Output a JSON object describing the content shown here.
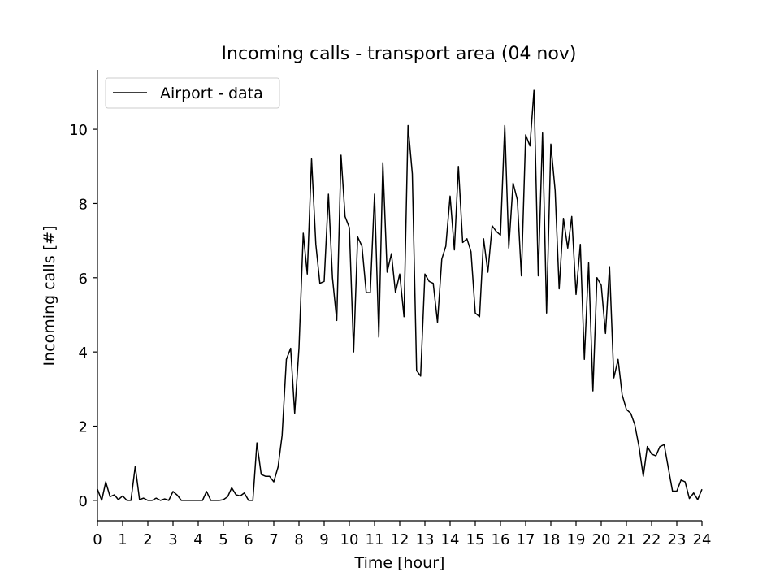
{
  "chart_data": {
    "type": "line",
    "title": "Incoming calls - transport area (04 nov)",
    "xlabel": "Time [hour]",
    "ylabel": "Incoming calls [#]",
    "xlim": [
      0,
      24
    ],
    "ylim": [
      -0.55,
      11.6
    ],
    "xticks": [
      0,
      1,
      2,
      3,
      4,
      5,
      6,
      7,
      8,
      9,
      10,
      11,
      12,
      13,
      14,
      15,
      16,
      17,
      18,
      19,
      20,
      21,
      22,
      23,
      24
    ],
    "yticks": [
      0,
      2,
      4,
      6,
      8,
      10
    ],
    "grid": false,
    "legend_position": "upper left",
    "series": [
      {
        "name": "Airport - data",
        "color": "#000000",
        "x": [
          0,
          0.17,
          0.33,
          0.5,
          0.67,
          0.83,
          1,
          1.17,
          1.33,
          1.5,
          1.67,
          1.83,
          2,
          2.17,
          2.33,
          2.5,
          2.67,
          2.83,
          3,
          3.17,
          3.33,
          3.5,
          3.67,
          3.83,
          4,
          4.17,
          4.33,
          4.5,
          4.67,
          4.83,
          5,
          5.17,
          5.33,
          5.5,
          5.67,
          5.83,
          6,
          6.17,
          6.33,
          6.5,
          6.67,
          6.83,
          7,
          7.17,
          7.33,
          7.5,
          7.67,
          7.83,
          8,
          8.17,
          8.33,
          8.5,
          8.67,
          8.83,
          9,
          9.17,
          9.33,
          9.5,
          9.67,
          9.83,
          10,
          10.17,
          10.33,
          10.5,
          10.67,
          10.83,
          11,
          11.17,
          11.33,
          11.5,
          11.67,
          11.83,
          12,
          12.17,
          12.33,
          12.5,
          12.67,
          12.83,
          13,
          13.17,
          13.33,
          13.5,
          13.67,
          13.83,
          14,
          14.17,
          14.33,
          14.5,
          14.67,
          14.83,
          15,
          15.17,
          15.33,
          15.5,
          15.67,
          15.83,
          16,
          16.17,
          16.33,
          16.5,
          16.67,
          16.83,
          17,
          17.17,
          17.33,
          17.5,
          17.67,
          17.83,
          18,
          18.17,
          18.33,
          18.5,
          18.67,
          18.83,
          19,
          19.17,
          19.33,
          19.5,
          19.67,
          19.83,
          20,
          20.17,
          20.33,
          20.5,
          20.67,
          20.83,
          21,
          21.17,
          21.33,
          21.5,
          21.67,
          21.83,
          22,
          22.17,
          22.33,
          22.5,
          22.67,
          22.83,
          23,
          23.17,
          23.33,
          23.5,
          23.67,
          23.83,
          24
        ],
        "y": [
          0.3,
          0.0,
          0.5,
          0.1,
          0.15,
          0.02,
          0.12,
          0.0,
          0.0,
          0.92,
          0.02,
          0.06,
          0.0,
          0.0,
          0.06,
          0.0,
          0.04,
          0.0,
          0.24,
          0.14,
          0.0,
          0.0,
          0.0,
          0.0,
          0.0,
          0.0,
          0.24,
          0.0,
          0.0,
          0.0,
          0.02,
          0.1,
          0.34,
          0.15,
          0.12,
          0.2,
          0.0,
          0.0,
          1.55,
          0.7,
          0.65,
          0.65,
          0.5,
          0.9,
          1.75,
          3.8,
          4.1,
          2.35,
          4.1,
          7.2,
          6.1,
          9.2,
          6.9,
          5.85,
          5.9,
          8.25,
          6.0,
          4.85,
          9.3,
          7.65,
          7.35,
          4.0,
          7.1,
          6.85,
          5.6,
          5.6,
          8.25,
          4.4,
          9.1,
          6.15,
          6.65,
          5.6,
          6.1,
          4.95,
          10.1,
          8.8,
          3.5,
          3.35,
          6.1,
          5.9,
          5.85,
          4.8,
          6.5,
          6.85,
          8.2,
          6.75,
          9.0,
          6.95,
          7.05,
          6.7,
          5.05,
          4.95,
          7.05,
          6.15,
          7.4,
          7.25,
          7.15,
          10.1,
          6.8,
          8.55,
          8.1,
          6.05,
          9.85,
          9.55,
          11.05,
          6.05,
          9.9,
          5.05,
          9.6,
          8.35,
          5.7,
          7.6,
          6.8,
          7.65,
          5.55,
          6.9,
          3.8,
          6.4,
          2.95,
          6.0,
          5.8,
          4.5,
          6.3,
          3.3,
          3.8,
          2.85,
          2.45,
          2.35,
          2.05,
          1.45,
          0.65,
          1.45,
          1.25,
          1.2,
          1.45,
          1.5,
          0.85,
          0.25,
          0.25,
          0.55,
          0.5,
          0.05,
          0.2,
          0.02,
          0.3
        ]
      }
    ]
  }
}
